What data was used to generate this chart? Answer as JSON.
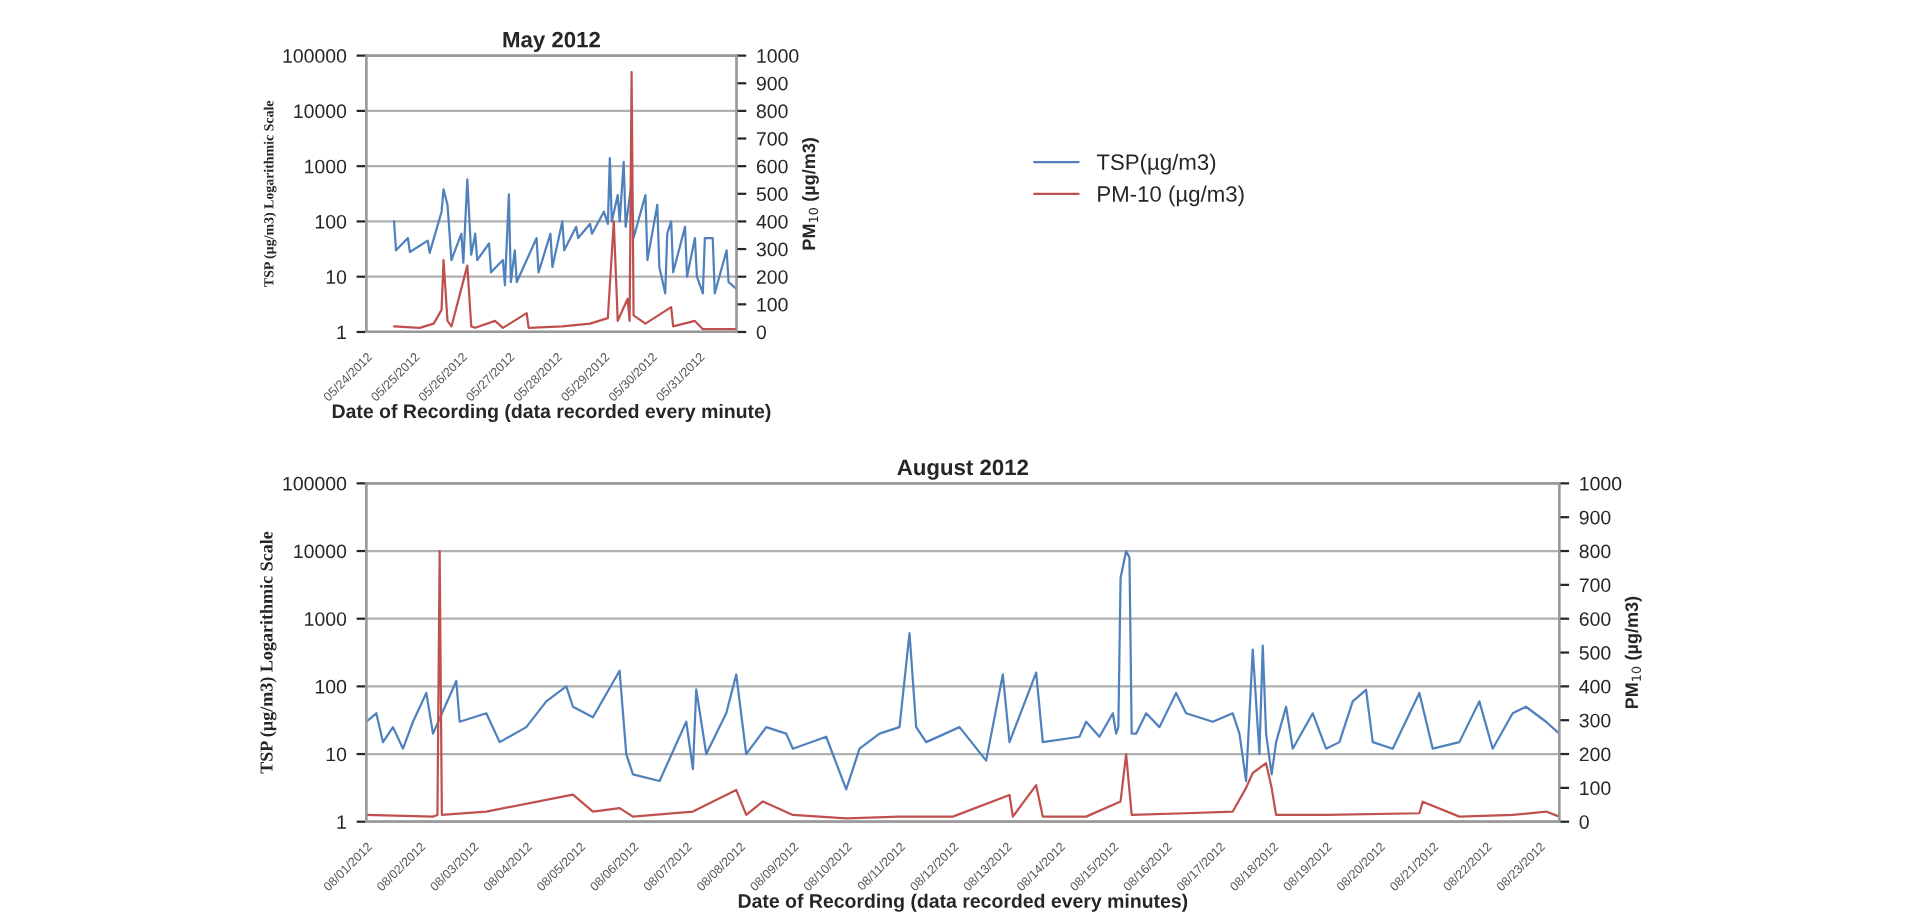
{
  "chart_data": [
    {
      "type": "line",
      "title": "May 2012",
      "xlabel": "Date of Recording (data recorded every minute)",
      "ylabel": "TSP (µg/m3) Logarithmic Scale",
      "y2label": "PM$_{10}$ (µg/m3)",
      "log": "y",
      "ylim": [
        1,
        100000
      ],
      "yticks": [
        1,
        10,
        100,
        1000,
        10000,
        100000
      ],
      "y2lim": [
        0,
        1000
      ],
      "y2ticks": [
        0,
        100,
        200,
        300,
        400,
        500,
        600,
        700,
        800,
        900,
        1000
      ],
      "xlim": [
        "2012-05-24",
        "2012-05-31T19:00"
      ],
      "xticks": [
        {
          "value": "2012-05-24",
          "label": "05/24/2012"
        },
        {
          "value": "2012-05-25",
          "label": "05/25/2012"
        },
        {
          "value": "2012-05-26",
          "label": "05/26/2012"
        },
        {
          "value": "2012-05-27",
          "label": "05/27/2012"
        },
        {
          "value": "2012-05-28",
          "label": "05/28/2012"
        },
        {
          "value": "2012-05-29",
          "label": "05/29/2012"
        },
        {
          "value": "2012-05-30",
          "label": "05/30/2012"
        },
        {
          "value": "2012-05-31",
          "label": "05/31/2012"
        }
      ],
      "grid": "y",
      "legend": "right",
      "line_style": "solid",
      "series": [
        {
          "name": "TSP(µg/m3)",
          "color": "#4f81bd",
          "x": [
            "2012-05-24T14:00",
            "2012-05-24T15:00",
            "2012-05-24T21:00",
            "2012-05-24T22:00",
            "2012-05-25T07:00",
            "2012-05-25T08:00",
            "2012-05-25T14:00",
            "2012-05-25T15:00",
            "2012-05-25T17:00",
            "2012-05-25T19:00",
            "2012-05-26T00:00",
            "2012-05-26T01:00",
            "2012-05-26T03:00",
            "2012-05-26T05:00",
            "2012-05-26T07:00",
            "2012-05-26T08:00",
            "2012-05-26T14:00",
            "2012-05-26T15:00",
            "2012-05-26T21:00",
            "2012-05-26T22:00",
            "2012-05-27T00:00",
            "2012-05-27T01:00",
            "2012-05-27T03:00",
            "2012-05-27T04:00",
            "2012-05-27T14:00",
            "2012-05-27T15:00",
            "2012-05-27T21:00",
            "2012-05-27T22:00",
            "2012-05-28T03:00",
            "2012-05-28T04:00",
            "2012-05-28T10:00",
            "2012-05-28T11:00",
            "2012-05-28T17:00",
            "2012-05-28T18:00",
            "2012-05-29T00:00",
            "2012-05-29T02:00",
            "2012-05-29T03:00",
            "2012-05-29T04:00",
            "2012-05-29T07:00",
            "2012-05-29T08:00",
            "2012-05-29T10:00",
            "2012-05-29T11:00",
            "2012-05-29T14:00",
            "2012-05-29T15:00",
            "2012-05-29T21:00",
            "2012-05-29T22:00",
            "2012-05-30T03:00",
            "2012-05-30T04:00",
            "2012-05-30T07:00",
            "2012-05-30T08:00",
            "2012-05-30T10:00",
            "2012-05-30T11:00",
            "2012-05-30T17:00",
            "2012-05-30T18:00",
            "2012-05-30T22:00",
            "2012-05-30T23:00",
            "2012-05-31T02:00",
            "2012-05-31T03:00",
            "2012-05-31T07:00",
            "2012-05-31T08:00",
            "2012-05-31T14:00",
            "2012-05-31T15:00",
            "2012-05-31T19:00"
          ],
          "values": [
            100,
            30,
            50,
            28,
            45,
            27,
            150,
            380,
            200,
            20,
            60,
            18,
            575,
            25,
            60,
            20,
            40,
            12,
            20,
            7,
            310,
            8,
            30,
            8,
            50,
            12,
            60,
            15,
            100,
            30,
            80,
            50,
            90,
            60,
            150,
            90,
            1400,
            100,
            300,
            100,
            1200,
            80,
            500,
            50,
            300,
            20,
            200,
            15,
            5,
            60,
            100,
            12,
            80,
            10,
            50,
            10,
            5,
            50,
            50,
            5,
            30,
            8,
            6
          ]
        },
        {
          "name": "PM-10 (µg/m3)",
          "color": "#c0504d",
          "axis": "y2",
          "x": [
            "2012-05-24T14:00",
            "2012-05-25T03:00",
            "2012-05-25T10:00",
            "2012-05-25T14:00",
            "2012-05-25T15:00",
            "2012-05-25T17:00",
            "2012-05-25T19:00",
            "2012-05-26T03:00",
            "2012-05-26T05:00",
            "2012-05-26T07:00",
            "2012-05-26T17:00",
            "2012-05-26T21:00",
            "2012-05-27T09:00",
            "2012-05-27T10:00",
            "2012-05-28T03:00",
            "2012-05-28T17:00",
            "2012-05-29T02:00",
            "2012-05-29T05:00",
            "2012-05-29T07:00",
            "2012-05-29T12:00",
            "2012-05-29T13:00",
            "2012-05-29T14:00",
            "2012-05-29T15:00",
            "2012-05-29T21:00",
            "2012-05-30T10:00",
            "2012-05-30T11:00",
            "2012-05-30T22:00",
            "2012-05-31T02:00",
            "2012-05-31T19:00"
          ],
          "values": [
            20,
            15,
            30,
            80,
            260,
            40,
            20,
            240,
            20,
            15,
            40,
            15,
            68,
            15,
            20,
            30,
            50,
            400,
            40,
            120,
            40,
            940,
            60,
            30,
            90,
            20,
            40,
            10,
            10
          ]
        }
      ]
    },
    {
      "type": "line",
      "title": "August 2012",
      "xlabel": "Date of Recording (data recorded every minutes)",
      "ylabel": "TSP (µg/m3) Logarithmic Scale",
      "y2label": "PM$_{10}$ (µg/m3)",
      "log": "y",
      "ylim": [
        1,
        100000
      ],
      "yticks": [
        1,
        10,
        100,
        1000,
        10000,
        100000
      ],
      "y2lim": [
        0,
        1000
      ],
      "y2ticks": [
        0,
        100,
        200,
        300,
        400,
        500,
        600,
        700,
        800,
        900,
        1000
      ],
      "xlim": [
        "2012-08-01",
        "2012-08-23T09:00"
      ],
      "xticks": [
        {
          "value": "2012-08-01",
          "label": "08/01/2012"
        },
        {
          "value": "2012-08-02",
          "label": "08/02/2012"
        },
        {
          "value": "2012-08-03",
          "label": "08/03/2012"
        },
        {
          "value": "2012-08-04",
          "label": "08/04/2012"
        },
        {
          "value": "2012-08-05",
          "label": "08/05/2012"
        },
        {
          "value": "2012-08-06",
          "label": "08/06/2012"
        },
        {
          "value": "2012-08-07",
          "label": "08/07/2012"
        },
        {
          "value": "2012-08-08",
          "label": "08/08/2012"
        },
        {
          "value": "2012-08-09",
          "label": "08/09/2012"
        },
        {
          "value": "2012-08-10",
          "label": "08/10/2012"
        },
        {
          "value": "2012-08-11",
          "label": "08/11/2012"
        },
        {
          "value": "2012-08-12",
          "label": "08/12/2012"
        },
        {
          "value": "2012-08-13",
          "label": "08/13/2012"
        },
        {
          "value": "2012-08-14",
          "label": "08/14/2012"
        },
        {
          "value": "2012-08-15",
          "label": "08/15/2012"
        },
        {
          "value": "2012-08-16",
          "label": "08/16/2012"
        },
        {
          "value": "2012-08-17",
          "label": "08/17/2012"
        },
        {
          "value": "2012-08-18",
          "label": "08/18/2012"
        },
        {
          "value": "2012-08-19",
          "label": "08/19/2012"
        },
        {
          "value": "2012-08-20",
          "label": "08/20/2012"
        },
        {
          "value": "2012-08-21",
          "label": "08/21/2012"
        },
        {
          "value": "2012-08-22",
          "label": "08/22/2012"
        },
        {
          "value": "2012-08-23",
          "label": "08/23/2012"
        }
      ],
      "grid": "y",
      "line_style": "solid",
      "series": [
        {
          "color": "#4f81bd",
          "x": [
            "2012-08-01T00:00",
            "2012-08-01T04:30",
            "2012-08-01T07:30",
            "2012-08-01T12:00",
            "2012-08-01T16:30",
            "2012-08-01T21:00",
            "2012-08-02T03:00",
            "2012-08-02T06:00",
            "2012-08-02T16:30",
            "2012-08-02T18:00",
            "2012-08-03T06:00",
            "2012-08-03T12:00",
            "2012-08-04T00:00",
            "2012-08-04T09:00",
            "2012-08-04T18:00",
            "2012-08-04T21:00",
            "2012-08-05T06:00",
            "2012-08-05T18:00",
            "2012-08-05T21:00",
            "2012-08-06T00:00",
            "2012-08-06T12:00",
            "2012-08-07T00:00",
            "2012-08-07T03:00",
            "2012-08-07T04:30",
            "2012-08-07T09:00",
            "2012-08-07T18:00",
            "2012-08-07T22:30",
            "2012-08-08T03:00",
            "2012-08-08T12:00",
            "2012-08-08T21:00",
            "2012-08-09T00:00",
            "2012-08-09T15:00",
            "2012-08-10T00:00",
            "2012-08-10T06:00",
            "2012-08-10T15:00",
            "2012-08-11T00:00",
            "2012-08-11T04:30",
            "2012-08-11T07:30",
            "2012-08-11T12:00",
            "2012-08-12T03:00",
            "2012-08-12T15:00",
            "2012-08-12T22:30",
            "2012-08-13T01:30",
            "2012-08-13T13:30",
            "2012-08-13T16:30",
            "2012-08-14T09:00",
            "2012-08-14T12:00",
            "2012-08-14T18:00",
            "2012-08-15T00:00",
            "2012-08-15T01:30",
            "2012-08-15T02:30",
            "2012-08-15T03:30",
            "2012-08-15T06:00",
            "2012-08-15T07:30",
            "2012-08-15T08:30",
            "2012-08-15T10:30",
            "2012-08-15T15:00",
            "2012-08-15T21:00",
            "2012-08-16T04:30",
            "2012-08-16T09:00",
            "2012-08-16T21:00",
            "2012-08-17T06:00",
            "2012-08-17T09:00",
            "2012-08-17T12:00",
            "2012-08-17T15:00",
            "2012-08-17T18:00",
            "2012-08-17T19:30",
            "2012-08-17T21:00",
            "2012-08-17T23:30",
            "2012-08-18T01:30",
            "2012-08-18T06:00",
            "2012-08-18T09:00",
            "2012-08-18T18:00",
            "2012-08-19T00:00",
            "2012-08-19T06:00",
            "2012-08-19T12:00",
            "2012-08-19T18:00",
            "2012-08-19T21:00",
            "2012-08-20T06:00",
            "2012-08-20T18:00",
            "2012-08-21T00:00",
            "2012-08-21T12:00",
            "2012-08-21T21:00",
            "2012-08-22T03:00",
            "2012-08-22T12:00",
            "2012-08-22T18:00",
            "2012-08-23T03:00",
            "2012-08-23T09:00"
          ],
          "values": [
            30,
            40,
            15,
            25,
            12,
            30,
            80,
            20,
            120,
            30,
            40,
            15,
            25,
            60,
            100,
            50,
            35,
            170,
            10,
            5,
            4,
            30,
            6,
            90,
            10,
            40,
            150,
            10,
            25,
            20,
            12,
            18,
            3,
            12,
            20,
            25,
            610,
            25,
            15,
            25,
            8,
            150,
            15,
            160,
            15,
            18,
            30,
            18,
            40,
            20,
            25,
            4000,
            10000,
            8000,
            20,
            20,
            40,
            25,
            80,
            40,
            30,
            40,
            20,
            4,
            350,
            10,
            400,
            20,
            5,
            15,
            50,
            12,
            40,
            12,
            15,
            60,
            89,
            15,
            12,
            80,
            12,
            15,
            60,
            12,
            40,
            50,
            30,
            20
          ]
        },
        {
          "color": "#c0504d",
          "axis": "y2",
          "x": [
            "2012-08-01T00:00",
            "2012-08-02T06:00",
            "2012-08-02T08:00",
            "2012-08-02T09:00",
            "2012-08-02T10:00",
            "2012-08-03T06:00",
            "2012-08-04T21:00",
            "2012-08-05T06:00",
            "2012-08-05T18:00",
            "2012-08-06T00:00",
            "2012-08-07T03:00",
            "2012-08-07T22:30",
            "2012-08-08T03:00",
            "2012-08-08T10:30",
            "2012-08-09T00:00",
            "2012-08-10T00:00",
            "2012-08-11T00:00",
            "2012-08-12T00:00",
            "2012-08-13T01:30",
            "2012-08-13T03:00",
            "2012-08-13T13:30",
            "2012-08-13T16:30",
            "2012-08-14T12:00",
            "2012-08-15T03:30",
            "2012-08-15T06:00",
            "2012-08-15T08:30",
            "2012-08-16T09:00",
            "2012-08-17T06:00",
            "2012-08-17T12:00",
            "2012-08-17T15:00",
            "2012-08-17T21:00",
            "2012-08-17T23:30",
            "2012-08-18T01:30",
            "2012-08-19T00:00",
            "2012-08-20T18:00",
            "2012-08-20T19:30",
            "2012-08-21T12:00",
            "2012-08-22T12:00",
            "2012-08-23T03:00",
            "2012-08-23T09:00"
          ],
          "values": [
            20,
            15,
            20,
            800,
            20,
            30,
            80,
            30,
            40,
            15,
            30,
            94,
            20,
            60,
            20,
            10,
            15,
            15,
            79,
            15,
            108,
            15,
            15,
            60,
            200,
            20,
            25,
            30,
            100,
            144,
            173,
            100,
            20,
            20,
            25,
            59,
            15,
            20,
            30,
            15
          ]
        }
      ]
    }
  ]
}
